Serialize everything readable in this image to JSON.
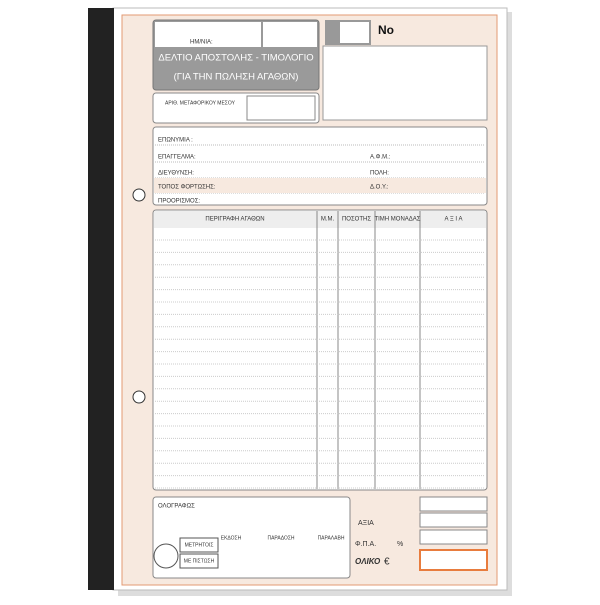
{
  "header": {
    "date_label": "ΗΜ/ΝΙΑ:",
    "title": "ΔΕΛΤΙΟ ΑΠΟΣΤΟΛΗΣ - ΤΙΜΟΛΟΓΙΟ",
    "subtitle": "(ΓΙΑ ΤΗΝ ΠΩΛΗΣΗ ΑΓΑΘΩΝ)",
    "number_label": "Νο",
    "vehicle_label": "ΑΡΙΘ. ΜΕΤΑΦΟΡΙΚΟΥ ΜΕΣΟΥ"
  },
  "customer": {
    "fields": [
      "ΕΠΩΝΥΜΙΑ :",
      "ΕΠΑΓΓΕΛΜΑ:",
      "Α.Φ.Μ.:",
      "ΔΙΕΥΘΥΝΣΗ:",
      "ΠΟΛΗ:",
      "ΤΟΠΟΣ ΦΟΡΤΩΣΗΣ:",
      "Δ.Ο.Υ.:",
      "ΠΡΟΟΡΙΣΜΟΣ:"
    ]
  },
  "table": {
    "columns": [
      "ΠΕΡΙΓΡΑΦΗ ΑΓΑΘΩΝ",
      "Μ.Μ.",
      "ΠΟΣΟΤΗΣ",
      "ΤΙΜΗ ΜΟΝΑΔΑΣ",
      "Α Ξ Ι Α"
    ]
  },
  "footer": {
    "words_label": "ΟΛΟΓΡΑΦΩΣ",
    "payment": [
      "ΜΕΤΡΗΤΟΙΣ",
      "ΜΕ ΠΙΣΤΩΣΗ"
    ],
    "signatures": [
      "ΕΚΔΟΣΗ",
      "ΠΑΡΑΔΟΣΗ",
      "ΠΑΡΑΛΑΒΗ"
    ],
    "value_label": "ΑΞΙΑ",
    "vat_label": "Φ.Π.Α.",
    "percent": "%",
    "total_label": "ΟΛΙΚΟ",
    "currency": "€"
  }
}
